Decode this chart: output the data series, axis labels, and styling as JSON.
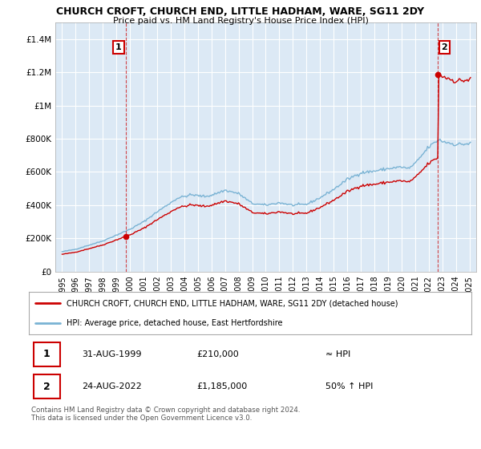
{
  "title": "CHURCH CROFT, CHURCH END, LITTLE HADHAM, WARE, SG11 2DY",
  "subtitle": "Price paid vs. HM Land Registry's House Price Index (HPI)",
  "sale1_date": "31-AUG-1999",
  "sale1_price": 210000,
  "sale1_year": 1999.667,
  "sale2_date": "24-AUG-2022",
  "sale2_price": 1185000,
  "sale2_year": 2022.667,
  "sale1_hpi": "≈ HPI",
  "sale2_hpi": "50% ↑ HPI",
  "legend_line1": "CHURCH CROFT, CHURCH END, LITTLE HADHAM, WARE, SG11 2DY (detached house)",
  "legend_line2": "HPI: Average price, detached house, East Hertfordshire",
  "footer": "Contains HM Land Registry data © Crown copyright and database right 2024.\nThis data is licensed under the Open Government Licence v3.0.",
  "property_color": "#cc0000",
  "hpi_color": "#7ab3d4",
  "ylim_max": 1500000,
  "ytick_values": [
    0,
    200000,
    400000,
    600000,
    800000,
    1000000,
    1200000,
    1400000
  ],
  "ytick_labels": [
    "£0",
    "£200K",
    "£400K",
    "£600K",
    "£800K",
    "£1M",
    "£1.2M",
    "£1.4M"
  ],
  "background_color": "#ffffff",
  "plot_bg_color": "#dce9f5",
  "grid_color": "#ffffff"
}
